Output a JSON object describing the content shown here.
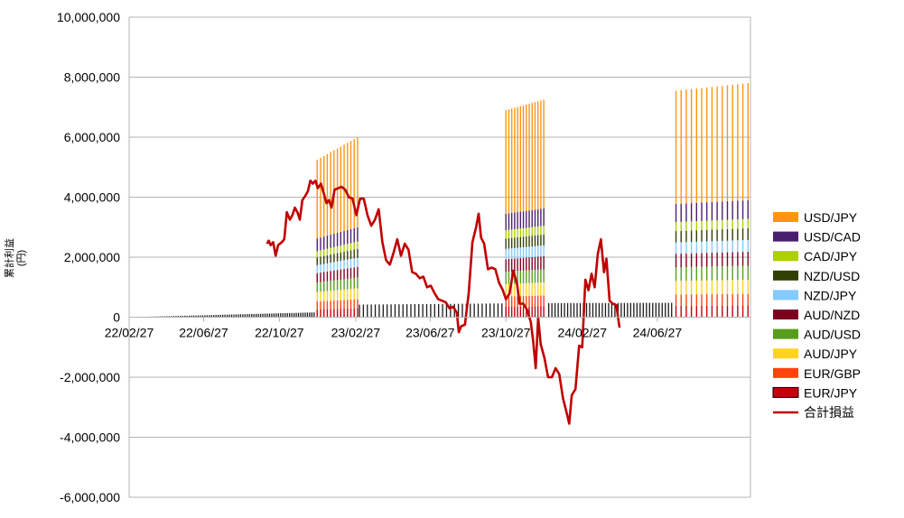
{
  "chart_data": {
    "type": "bar",
    "stacked": true,
    "ylabel_line1": "累計利益",
    "ylabel_line2": "(円)",
    "ylim": [
      -6000000,
      10000000
    ],
    "yticks": [
      {
        "value": 10000000,
        "label": "10,000,000"
      },
      {
        "value": 8000000,
        "label": "8,000,000"
      },
      {
        "value": 6000000,
        "label": "6,000,000"
      },
      {
        "value": 4000000,
        "label": "4,000,000"
      },
      {
        "value": 2000000,
        "label": "2,000,000"
      },
      {
        "value": 0,
        "label": "0"
      },
      {
        "value": -2000000,
        "label": "-2,000,000"
      },
      {
        "value": -4000000,
        "label": "-4,000,000"
      },
      {
        "value": -6000000,
        "label": "-6,000,000"
      }
    ],
    "xlim": [
      "2022-02-27",
      "2024-11-24"
    ],
    "xticks": [
      {
        "date": "2022-02-27",
        "label": "22/02/27"
      },
      {
        "date": "2022-06-27",
        "label": "22/06/27"
      },
      {
        "date": "2022-10-27",
        "label": "22/10/27"
      },
      {
        "date": "2023-02-27",
        "label": "23/02/27"
      },
      {
        "date": "2023-06-27",
        "label": "23/06/27"
      },
      {
        "date": "2023-10-27",
        "label": "23/10/27"
      },
      {
        "date": "2024-02-27",
        "label": "24/02/27"
      },
      {
        "date": "2024-06-27",
        "label": "24/06/27"
      }
    ],
    "grid": true,
    "legend_position": "right",
    "series": [
      {
        "name": "USD/JPY",
        "color": "#ff950e"
      },
      {
        "name": "USD/CAD",
        "color": "#4b1f6f"
      },
      {
        "name": "CAD/JPY",
        "color": "#aecf00"
      },
      {
        "name": "NZD/USD",
        "color": "#314004"
      },
      {
        "name": "NZD/JPY",
        "color": "#83caff"
      },
      {
        "name": "AUD/NZD",
        "color": "#7e0021"
      },
      {
        "name": "AUD/USD",
        "color": "#579d1c"
      },
      {
        "name": "AUD/JPY",
        "color": "#ffd320"
      },
      {
        "name": "EUR/GBP",
        "color": "#ff420e"
      },
      {
        "name": "EUR/JPY",
        "color": "#c5000b"
      }
    ],
    "bar_groups": [
      {
        "start": "2022-02-27",
        "end": "2022-12-22",
        "count": 84,
        "top_start": 0,
        "top_end": 160000,
        "breaks": [
          [
            0,
            1
          ]
        ],
        "dark": true
      },
      {
        "start": "2022-12-27",
        "end": "2023-03-02",
        "count": 13,
        "top_start": 5250000,
        "top_end": 6000000,
        "breaks": [
          [
            0.42,
            0.46
          ],
          [
            0.46,
            0.5
          ],
          [
            0.5,
            0.6
          ],
          [
            0.6,
            0.8
          ],
          [
            0.8,
            1
          ]
        ]
      },
      {
        "start": "2023-03-05",
        "end": "2023-10-27",
        "count": 38,
        "top_start": 420000,
        "top_end": 460000,
        "breaks": [
          [
            0,
            1
          ]
        ],
        "dark": true
      },
      {
        "start": "2023-10-27",
        "end": "2023-12-27",
        "count": 14,
        "top_start": 6900000,
        "top_end": 7250000,
        "breaks": [
          [
            0.42,
            0.46
          ],
          [
            0.46,
            0.5
          ],
          [
            0.5,
            0.6
          ],
          [
            0.6,
            0.8
          ],
          [
            0.8,
            1
          ]
        ]
      },
      {
        "start": "2024-01-04",
        "end": "2024-07-20",
        "count": 40,
        "top_start": 470000,
        "top_end": 480000,
        "breaks": [
          [
            0,
            1
          ]
        ],
        "dark": true
      },
      {
        "start": "2024-07-27",
        "end": "2024-11-20",
        "count": 15,
        "top_start": 7550000,
        "top_end": 7800000,
        "breaks": [
          [
            0.42,
            0.46
          ],
          [
            0.46,
            0.5
          ],
          [
            0.5,
            0.6
          ],
          [
            0.6,
            0.8
          ],
          [
            0.8,
            1
          ]
        ]
      }
    ],
    "total_line": {
      "name": "合計損益",
      "color": "#c00000",
      "points": [
        [
          "2022-10-07",
          2450000
        ],
        [
          "2022-10-10",
          2550000
        ],
        [
          "2022-10-13",
          2400000
        ],
        [
          "2022-10-17",
          2500000
        ],
        [
          "2022-10-21",
          2050000
        ],
        [
          "2022-10-25",
          2400000
        ],
        [
          "2022-10-31",
          2500000
        ],
        [
          "2022-11-04",
          2600000
        ],
        [
          "2022-11-08",
          3500000
        ],
        [
          "2022-11-13",
          3250000
        ],
        [
          "2022-11-17",
          3400000
        ],
        [
          "2022-11-21",
          3650000
        ],
        [
          "2022-11-25",
          3500000
        ],
        [
          "2022-11-29",
          3250000
        ],
        [
          "2022-12-03",
          3900000
        ],
        [
          "2022-12-08",
          4050000
        ],
        [
          "2022-12-12",
          4200000
        ],
        [
          "2022-12-16",
          4550000
        ],
        [
          "2022-12-20",
          4450000
        ],
        [
          "2022-12-24",
          4550000
        ],
        [
          "2022-12-28",
          4300000
        ],
        [
          "2023-01-02",
          4450000
        ],
        [
          "2023-01-07",
          4100000
        ],
        [
          "2023-01-11",
          3800000
        ],
        [
          "2023-01-15",
          3900000
        ],
        [
          "2023-01-19",
          3650000
        ],
        [
          "2023-01-24",
          4250000
        ],
        [
          "2023-01-30",
          4300000
        ],
        [
          "2023-02-04",
          4350000
        ],
        [
          "2023-02-10",
          4250000
        ],
        [
          "2023-02-16",
          4000000
        ],
        [
          "2023-02-22",
          3950000
        ],
        [
          "2023-02-28",
          3400000
        ],
        [
          "2023-03-06",
          3950000
        ],
        [
          "2023-03-12",
          3950000
        ],
        [
          "2023-03-18",
          3400000
        ],
        [
          "2023-03-24",
          3050000
        ],
        [
          "2023-03-30",
          3250000
        ],
        [
          "2023-04-05",
          3600000
        ],
        [
          "2023-04-11",
          2500000
        ],
        [
          "2023-04-17",
          1900000
        ],
        [
          "2023-04-23",
          1750000
        ],
        [
          "2023-04-29",
          2150000
        ],
        [
          "2023-05-05",
          2600000
        ],
        [
          "2023-05-11",
          2050000
        ],
        [
          "2023-05-17",
          2450000
        ],
        [
          "2023-05-23",
          2250000
        ],
        [
          "2023-05-29",
          1500000
        ],
        [
          "2023-06-04",
          1450000
        ],
        [
          "2023-06-10",
          1300000
        ],
        [
          "2023-06-16",
          1350000
        ],
        [
          "2023-06-22",
          1000000
        ],
        [
          "2023-06-28",
          1050000
        ],
        [
          "2023-07-04",
          800000
        ],
        [
          "2023-07-10",
          600000
        ],
        [
          "2023-07-16",
          550000
        ],
        [
          "2023-07-22",
          500000
        ],
        [
          "2023-07-28",
          300000
        ],
        [
          "2023-08-03",
          350000
        ],
        [
          "2023-08-09",
          150000
        ],
        [
          "2023-08-12",
          -500000
        ],
        [
          "2023-08-16",
          -300000
        ],
        [
          "2023-08-22",
          -250000
        ],
        [
          "2023-08-28",
          800000
        ],
        [
          "2023-09-03",
          2500000
        ],
        [
          "2023-09-09",
          3000000
        ],
        [
          "2023-09-13",
          3450000
        ],
        [
          "2023-09-17",
          2650000
        ],
        [
          "2023-09-22",
          2450000
        ],
        [
          "2023-09-28",
          1600000
        ],
        [
          "2023-10-04",
          1650000
        ],
        [
          "2023-10-10",
          1600000
        ],
        [
          "2023-10-16",
          1150000
        ],
        [
          "2023-10-22",
          900000
        ],
        [
          "2023-10-27",
          600000
        ],
        [
          "2023-11-02",
          800000
        ],
        [
          "2023-11-08",
          1550000
        ],
        [
          "2023-11-14",
          1100000
        ],
        [
          "2023-11-18",
          450000
        ],
        [
          "2023-11-24",
          450000
        ],
        [
          "2023-11-30",
          250000
        ],
        [
          "2023-12-06",
          -150000
        ],
        [
          "2023-12-10",
          -800000
        ],
        [
          "2023-12-14",
          -1700000
        ],
        [
          "2023-12-18",
          0
        ],
        [
          "2023-12-22",
          -900000
        ],
        [
          "2023-12-28",
          -1350000
        ],
        [
          "2024-01-03",
          -2000000
        ],
        [
          "2024-01-09",
          -2000000
        ],
        [
          "2024-01-15",
          -1700000
        ],
        [
          "2024-01-21",
          -1900000
        ],
        [
          "2024-01-27",
          -2700000
        ],
        [
          "2024-02-02",
          -3200000
        ],
        [
          "2024-02-06",
          -3550000
        ],
        [
          "2024-02-10",
          -2600000
        ],
        [
          "2024-02-16",
          -2400000
        ],
        [
          "2024-02-22",
          -950000
        ],
        [
          "2024-02-27",
          -1000000
        ],
        [
          "2024-03-03",
          1250000
        ],
        [
          "2024-03-08",
          900000
        ],
        [
          "2024-03-13",
          1450000
        ],
        [
          "2024-03-18",
          1000000
        ],
        [
          "2024-03-23",
          2100000
        ],
        [
          "2024-03-28",
          2600000
        ],
        [
          "2024-04-02",
          1500000
        ],
        [
          "2024-04-06",
          1950000
        ],
        [
          "2024-04-11",
          550000
        ],
        [
          "2024-04-16",
          450000
        ],
        [
          "2024-04-22",
          400000
        ],
        [
          "2024-04-27",
          -350000
        ]
      ]
    }
  }
}
